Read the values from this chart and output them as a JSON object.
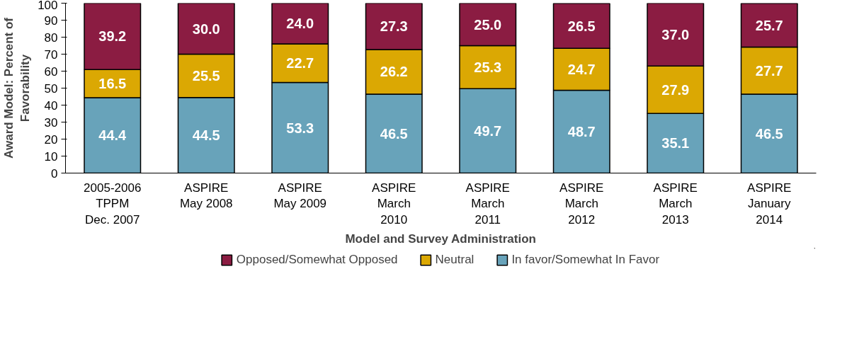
{
  "chart_data": {
    "type": "bar",
    "stacked": true,
    "xlabel": "Model and Survey Administration",
    "ylabel": "Award Model: Percent of\nFavorability",
    "categories": [
      "2005-2006\nTPPM\nDec. 2007",
      "ASPIRE\nMay 2008",
      "ASPIRE\nMay 2009",
      "ASPIRE\nMarch\n2010",
      "ASPIRE\nMarch\n2011",
      "ASPIRE\nMarch\n2012",
      "ASPIRE\nMarch\n2013",
      "ASPIRE\nJanuary\n2014"
    ],
    "series": [
      {
        "name": "In favor/Somewhat In Favor",
        "color": "#68a3ba",
        "values": [
          44.4,
          44.5,
          53.3,
          46.5,
          49.7,
          48.7,
          35.1,
          46.5
        ],
        "value_labels": [
          "44.4",
          "44.5",
          "53.3",
          "46.5",
          "49.7",
          "48.7",
          "35.1",
          "46.5"
        ]
      },
      {
        "name": "Neutral",
        "color": "#dba803",
        "values": [
          16.5,
          25.5,
          22.7,
          26.2,
          25.3,
          24.7,
          27.9,
          27.7
        ],
        "value_labels": [
          "16.5",
          "25.5",
          "22.7",
          "26.2",
          "25.3",
          "24.7",
          "27.9",
          "27.7"
        ]
      },
      {
        "name": "Opposed/Somewhat Opposed",
        "color": "#8b1c42",
        "values": [
          39.2,
          30.0,
          24.0,
          27.3,
          25.0,
          26.5,
          37.0,
          25.7
        ],
        "value_labels": [
          "39.2",
          "30.0",
          "24.0",
          "27.3",
          "25.0",
          "26.5",
          "37.0",
          "25.7"
        ]
      }
    ],
    "ylim": [
      0,
      100
    ],
    "yticks": [
      0,
      10,
      20,
      30,
      40,
      50,
      60,
      70,
      80,
      90,
      100
    ],
    "grid": false,
    "legend": "bottom"
  }
}
